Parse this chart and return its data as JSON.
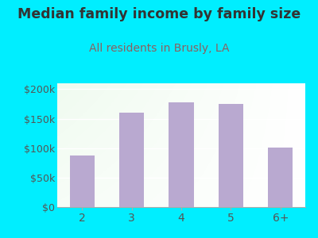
{
  "title": "Median family income by family size",
  "subtitle": "All residents in Brusly, LA",
  "categories": [
    "2",
    "3",
    "4",
    "5",
    "6+"
  ],
  "values": [
    87000,
    160000,
    178000,
    175000,
    101000
  ],
  "bar_color": "#b9a9d0",
  "background_outer": "#00eeff",
  "title_color": "#333333",
  "subtitle_color": "#8b6060",
  "tick_label_color": "#555555",
  "ylim": [
    0,
    210000
  ],
  "yticks": [
    0,
    50000,
    100000,
    150000,
    200000
  ],
  "ytick_labels": [
    "$0",
    "$50k",
    "$100k",
    "$150k",
    "$200k"
  ],
  "title_fontsize": 12.5,
  "subtitle_fontsize": 10,
  "tick_fontsize": 9
}
